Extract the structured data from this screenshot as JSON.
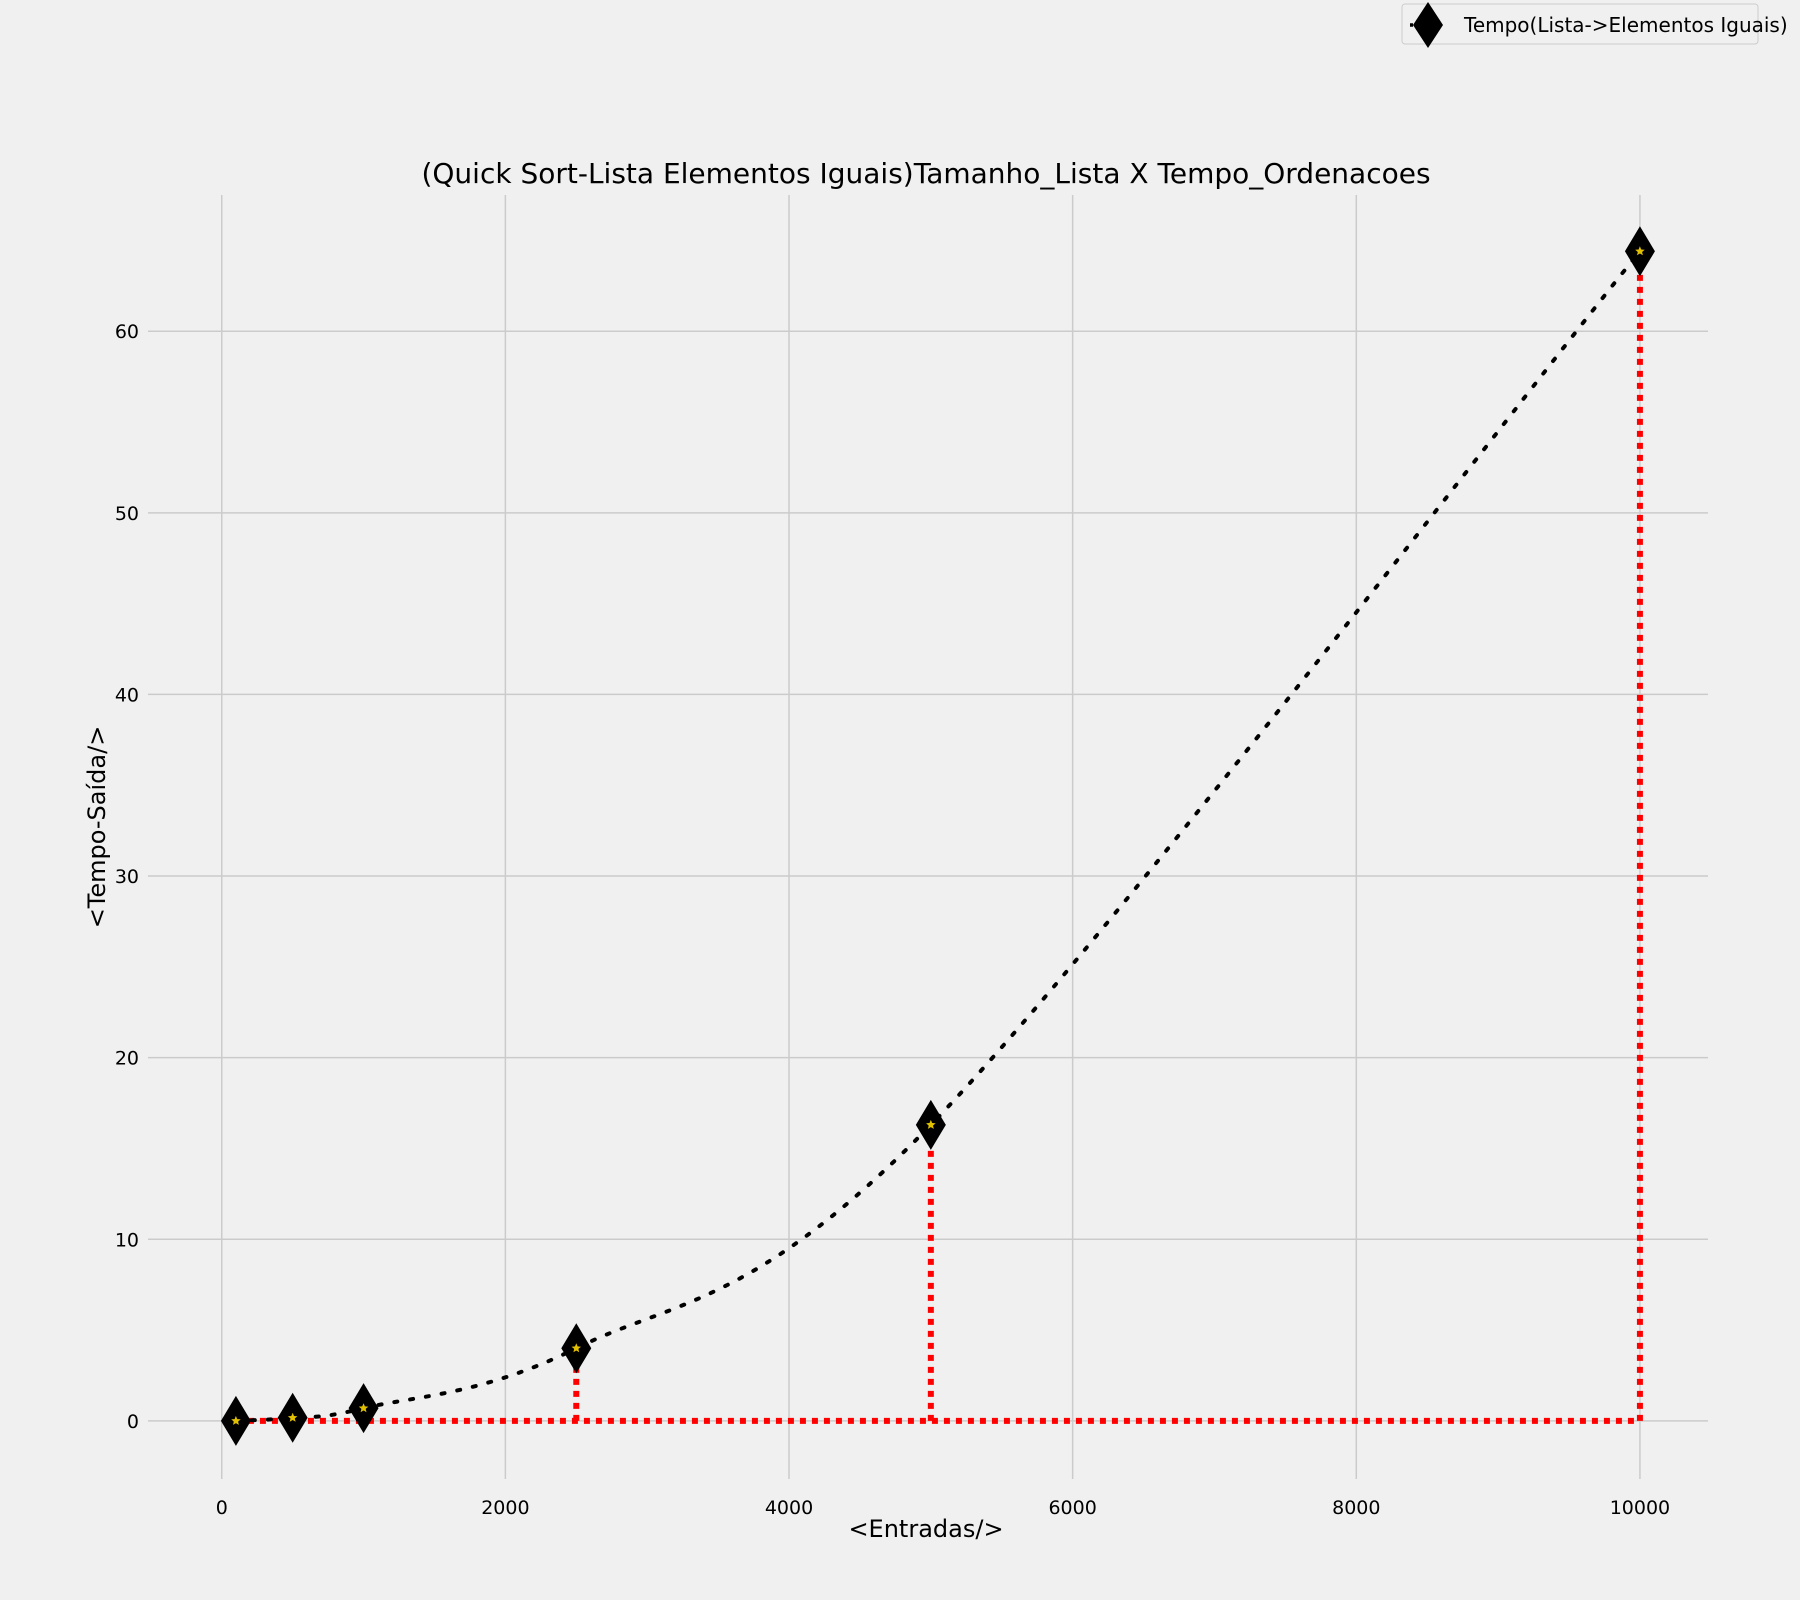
{
  "chart_data": {
    "type": "line",
    "title": "(Quick Sort-Lista Elementos Iguais)Tamanho_Lista X Tempo_Ordenacoes",
    "xlabel": "<Entradas/>",
    "ylabel": "<Tempo-Saída/>",
    "xlim": [
      -520,
      10480
    ],
    "ylim": [
      -3.2,
      67.5
    ],
    "xticks": [
      0,
      2000,
      4000,
      6000,
      8000,
      10000
    ],
    "yticks": [
      0,
      10,
      20,
      30,
      40,
      50,
      60
    ],
    "grid": true,
    "legend_position": "top-right",
    "series": [
      {
        "name": "Tempo(Lista->Elementos Iguais)",
        "x": [
          100,
          500,
          1000,
          2500,
          5000,
          10000
        ],
        "y": [
          0.0,
          0.17,
          0.7,
          4.0,
          16.3,
          64.4
        ],
        "line_style": "dotted",
        "marker": "diamond",
        "color": "#000000",
        "marker_inner": "star",
        "marker_inner_color": "#e0c000"
      }
    ],
    "projection_lines": {
      "color": "#ff0000",
      "style": "dotted"
    }
  }
}
